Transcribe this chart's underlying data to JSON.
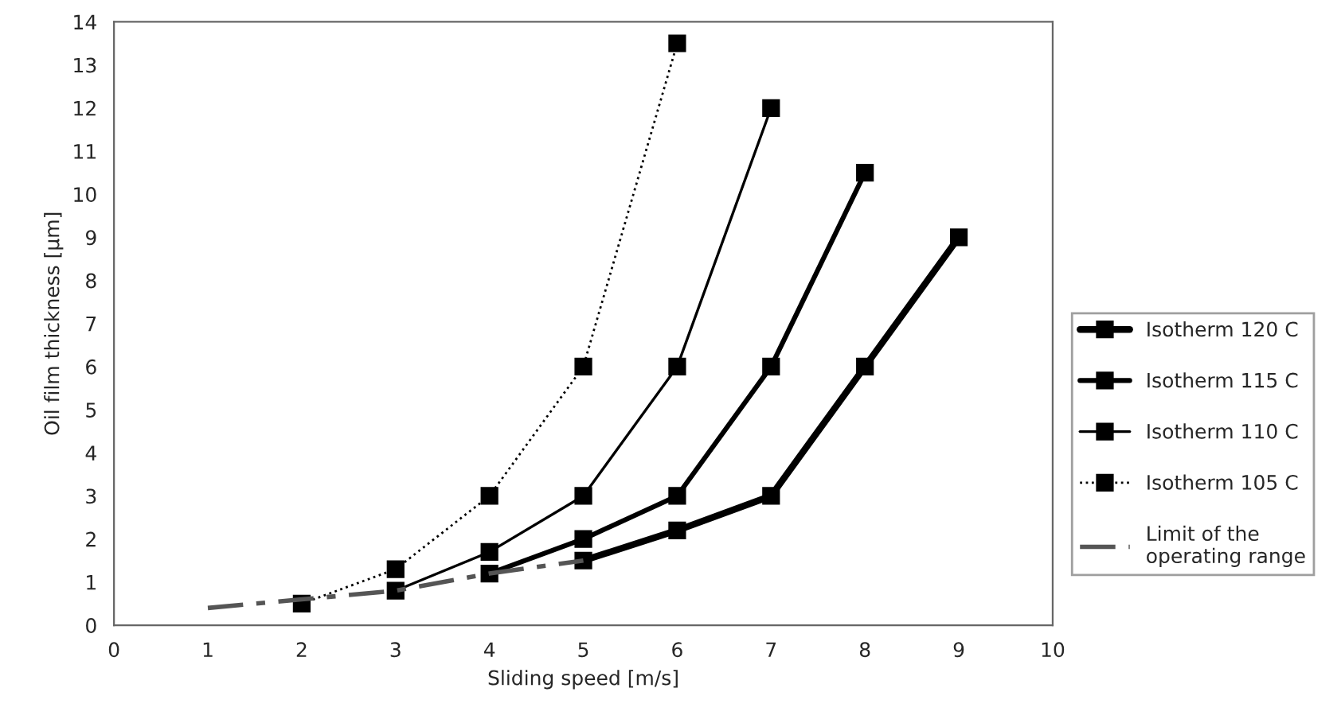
{
  "chart_data": {
    "type": "line",
    "xlabel": "Sliding speed [m/s]",
    "ylabel": "Oil film thickness [µm]",
    "xlim": [
      0,
      10
    ],
    "xticks": [
      0,
      1,
      2,
      3,
      4,
      5,
      6,
      7,
      8,
      9,
      10
    ],
    "ylim": [
      0,
      14
    ],
    "yticks": [
      0,
      1,
      2,
      3,
      4,
      5,
      6,
      7,
      8,
      9,
      10,
      11,
      12,
      13,
      14
    ],
    "grid": false,
    "legend": "right",
    "marker": "square",
    "series": [
      {
        "name": "Isotherm 120 C",
        "color": "#000000",
        "x": [
          5,
          6,
          7,
          8,
          9
        ],
        "values": [
          1.5,
          2.2,
          3,
          6,
          9
        ],
        "line_style": "solid"
      },
      {
        "name": "Isotherm 115 C",
        "color": "#000000",
        "x": [
          4,
          5,
          6,
          7,
          8
        ],
        "values": [
          1.2,
          2,
          3,
          6,
          10.5
        ],
        "line_style": "solid"
      },
      {
        "name": "Isotherm 110 C",
        "color": "#000000",
        "x": [
          3,
          4,
          5,
          6,
          7
        ],
        "values": [
          0.8,
          1.7,
          3,
          6,
          12
        ],
        "line_style": "solid"
      },
      {
        "name": "Isotherm 105 C",
        "color": "#000000",
        "x": [
          2,
          3,
          4,
          5,
          6
        ],
        "values": [
          0.5,
          1.3,
          3,
          6,
          13.5
        ],
        "line_style": "dotted"
      },
      {
        "name": "Limit of the\noperating range",
        "color": "#555555",
        "x": [
          1,
          2,
          3,
          4,
          5
        ],
        "values": [
          0.4,
          0.6,
          0.8,
          1.2,
          1.5
        ],
        "line_style": "dashed",
        "marker": "none"
      }
    ]
  }
}
